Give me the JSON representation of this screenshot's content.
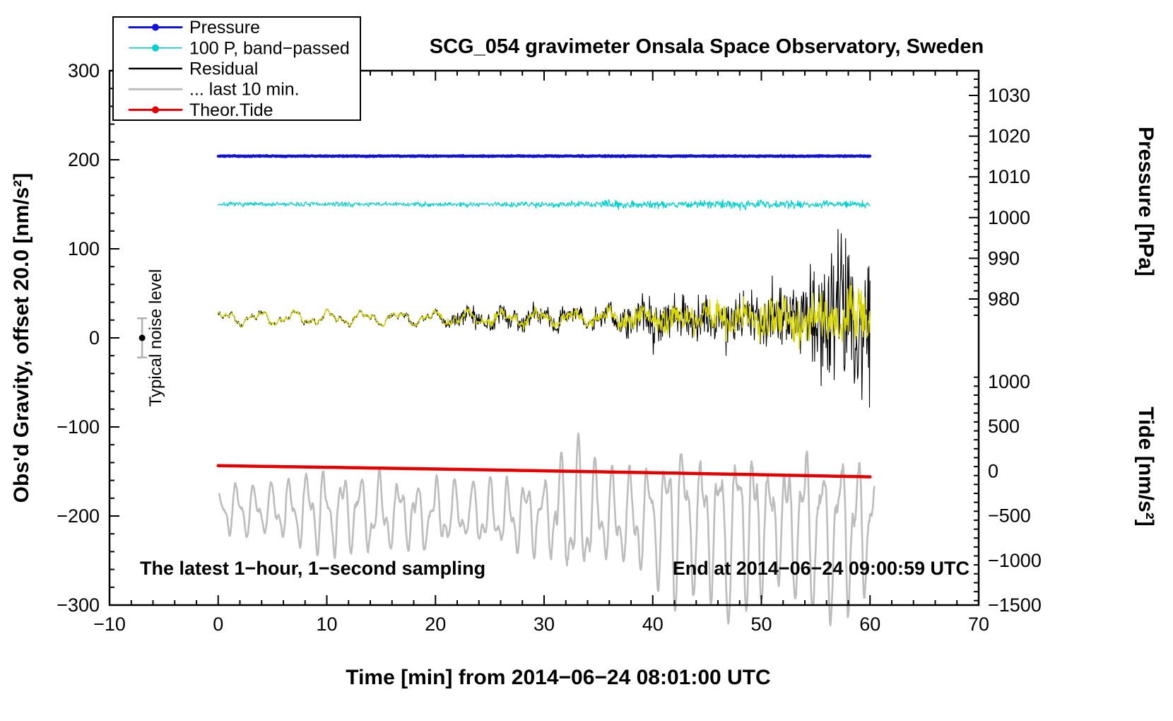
{
  "title": "SCG_054 gravimeter Onsala Space Observatory, Sweden",
  "annotations": {
    "sampling_note": "The latest 1−hour, 1−second sampling",
    "end_note": "End at 2014−06−24 09:00:59 UTC",
    "noise_label": "Typical noise level"
  },
  "axes": {
    "x": {
      "label": "Time [min] from 2014−06−24 08:01:00 UTC",
      "min": -10,
      "max": 70,
      "ticks": [
        -10,
        0,
        10,
        20,
        30,
        40,
        50,
        60,
        70
      ],
      "minor_step": 2
    },
    "y_left": {
      "label": "Obs'd Gravity, offset 20.0 [nm/s²]",
      "min": -300,
      "max": 300,
      "ticks": [
        -300,
        -200,
        -100,
        0,
        100,
        200,
        300
      ],
      "minor_step": 20
    },
    "y_right_pressure": {
      "label": "Pressure [hPa]",
      "ticks": [
        1030,
        1020,
        1010,
        1000,
        990,
        980
      ],
      "minor_step": 2
    },
    "y_right_tide": {
      "label": "Tide [nm/s²]",
      "ticks": [
        1000,
        500,
        0,
        -500,
        -1000,
        -1500
      ],
      "minor_step": 100
    }
  },
  "legend": [
    {
      "label": "Pressure",
      "color": "#1010e0",
      "marker": true,
      "width": 3
    },
    {
      "label": "100 P, band−passed",
      "color": "#00d2d2",
      "marker": true,
      "width": 1.6
    },
    {
      "label": "Residual",
      "color": "#000000",
      "marker": false,
      "width": 2.4
    },
    {
      "label": "... last 10 min.",
      "color": "#bcbcbc",
      "marker": false,
      "width": 3
    },
    {
      "label": "Theor.Tide",
      "color": "#e80000",
      "marker": true,
      "width": 3
    }
  ],
  "chart_data": {
    "type": "line",
    "x_range": [
      0,
      60
    ],
    "gravity_axis_range": [
      -300,
      300
    ],
    "pressure_axis_range_hpa": [
      980,
      1030
    ],
    "tide_axis_range": [
      -1500,
      1000
    ],
    "series": [
      {
        "name": "... last 10 min.",
        "kind": "last10",
        "axis": "gravity",
        "color": "#bcbcbc",
        "stroke_width": 2.6,
        "seed": 5,
        "x_start": 0.1,
        "x_end": 60.4,
        "periods": [
          1.62,
          0.77
        ],
        "weights": [
          0.65,
          0.35
        ],
        "center_envelope": [
          [
            0,
            -193
          ],
          [
            15,
            -196
          ],
          [
            30,
            -199
          ],
          [
            45,
            -203
          ],
          [
            60,
            -212
          ]
        ],
        "amp_envelope": [
          [
            0,
            28
          ],
          [
            2,
            35
          ],
          [
            4,
            30
          ],
          [
            6,
            38
          ],
          [
            8,
            48
          ],
          [
            10,
            55
          ],
          [
            12,
            50
          ],
          [
            14,
            52
          ],
          [
            16,
            45
          ],
          [
            18,
            42
          ],
          [
            20,
            46
          ],
          [
            22,
            38
          ],
          [
            24,
            40
          ],
          [
            26,
            44
          ],
          [
            28,
            48
          ],
          [
            30,
            52
          ],
          [
            32,
            80
          ],
          [
            33,
            95
          ],
          [
            34,
            85
          ],
          [
            35,
            60
          ],
          [
            37,
            58
          ],
          [
            39,
            70
          ],
          [
            41,
            90
          ],
          [
            42,
            105
          ],
          [
            44,
            88
          ],
          [
            46,
            100
          ],
          [
            47,
            118
          ],
          [
            48,
            112
          ],
          [
            50,
            88
          ],
          [
            52,
            72
          ],
          [
            54,
            95
          ],
          [
            55,
            112
          ],
          [
            56,
            112
          ],
          [
            57,
            118
          ],
          [
            58,
            112
          ],
          [
            59,
            95
          ],
          [
            60,
            72
          ]
        ]
      },
      {
        "name": "Theor.Tide",
        "kind": "tide",
        "axis": "gravity",
        "color": "#e80000",
        "stroke_width": 4.5,
        "x_start": 0,
        "x_end": 60,
        "gravity_start": -143.5,
        "gravity_end": -156,
        "tide_axis_start": 70,
        "tide_axis_end": -45
      },
      {
        "name": "Pressure",
        "kind": "pressure",
        "axis": "pressure_hpa",
        "color": "#1010e0",
        "stroke_width": 4,
        "seed": 3,
        "x_start": 0,
        "x_end": 60,
        "baseline_hpa": 1015.1,
        "noise_hpa": 0.12
      },
      {
        "name": "100 P, band−passed",
        "kind": "bandpass",
        "axis": "gravity",
        "color": "#00d2d2",
        "stroke_width": 1.2,
        "seed": 7,
        "x_start": 0,
        "x_end": 60,
        "level": 150,
        "noise_envelope": [
          [
            0,
            2.2
          ],
          [
            8,
            2.6
          ],
          [
            15,
            2.4
          ],
          [
            22,
            2.8
          ],
          [
            28,
            3.2
          ],
          [
            34,
            3.6
          ],
          [
            38,
            4.6
          ],
          [
            42,
            4.2
          ],
          [
            46,
            4.6
          ],
          [
            50,
            4.8
          ],
          [
            54,
            4.2
          ],
          [
            58,
            4.0
          ],
          [
            60,
            3.6
          ]
        ]
      },
      {
        "name": "Residual",
        "kind": "residual",
        "axis": "gravity",
        "color": "#000000",
        "stroke_width": 1.1,
        "seed": 13,
        "x_start": 0,
        "x_end": 60,
        "center": 22,
        "wave": [
          {
            "amp": 5.5,
            "period": 3.2,
            "phase": 0.4
          },
          {
            "amp": 3,
            "period": 1.45,
            "phase": 2.1
          },
          {
            "amp": 1.8,
            "period": 0.62,
            "phase": 1.0
          }
        ],
        "noise_envelope": [
          [
            0,
            2
          ],
          [
            14,
            2
          ],
          [
            20,
            3
          ],
          [
            22,
            9
          ],
          [
            26,
            11
          ],
          [
            30,
            10
          ],
          [
            33,
            9
          ],
          [
            36,
            13
          ],
          [
            38,
            18
          ],
          [
            40,
            26
          ],
          [
            42,
            20
          ],
          [
            44,
            24
          ],
          [
            46,
            30
          ],
          [
            48,
            28
          ],
          [
            50,
            33
          ],
          [
            52,
            38
          ],
          [
            54,
            48
          ],
          [
            55,
            60
          ],
          [
            56,
            70
          ],
          [
            57,
            80
          ],
          [
            58,
            95
          ],
          [
            59,
            110
          ],
          [
            60,
            85
          ]
        ]
      },
      {
        "name": "Residual band−passed (yellow)",
        "kind": "residual",
        "axis": "gravity",
        "color": "#d8d800",
        "stroke_width": 1.4,
        "seed": 21,
        "x_start": 0,
        "x_end": 60,
        "center": 22,
        "wave": [
          {
            "amp": 5.5,
            "period": 3.2,
            "phase": 0.4
          },
          {
            "amp": 3,
            "period": 1.45,
            "phase": 2.1
          },
          {
            "amp": 1.8,
            "period": 0.62,
            "phase": 1.0
          }
        ],
        "noise_envelope": [
          [
            0,
            1.2
          ],
          [
            18,
            1.5
          ],
          [
            22,
            4
          ],
          [
            26,
            5
          ],
          [
            30,
            5
          ],
          [
            34,
            5
          ],
          [
            38,
            9
          ],
          [
            40,
            13
          ],
          [
            43,
            13
          ],
          [
            46,
            16
          ],
          [
            49,
            18
          ],
          [
            52,
            22
          ],
          [
            55,
            26
          ],
          [
            57,
            30
          ],
          [
            59,
            34
          ],
          [
            60,
            32
          ]
        ]
      }
    ],
    "noise_marker": {
      "x_min": -7,
      "gravity_value": 0,
      "half_range": 22,
      "bar_color": "#b0b0b0",
      "dot_color": "#000000"
    }
  }
}
